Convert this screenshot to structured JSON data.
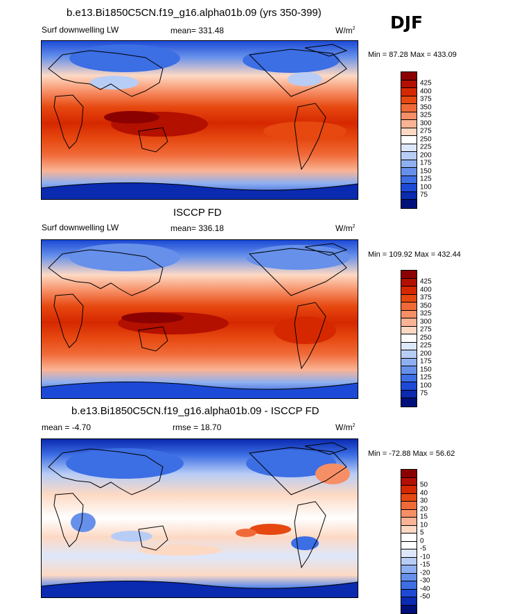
{
  "season": "DJF",
  "panels": [
    {
      "title": "b.e13.Bi1850C5CN.f19_g16.alpha01b.09 (yrs 350-399)",
      "left_label": "Surf downwelling LW",
      "center_label": "mean= 331.48",
      "units": "W/m",
      "units_sup": "2",
      "minmax": "Min =  87.28 Max = 433.09",
      "colorbar": {
        "colors": [
          "#8b0000",
          "#b31000",
          "#d62800",
          "#e64810",
          "#f06a38",
          "#f78f66",
          "#fab394",
          "#fdd9c4",
          "#ffffff",
          "#dde7fb",
          "#b8cdf6",
          "#8eb0f0",
          "#6690ea",
          "#3c6ee4",
          "#1c4ad6",
          "#0a2ab0",
          "#00107a"
        ],
        "labels": [
          "425",
          "400",
          "375",
          "350",
          "325",
          "300",
          "275",
          "250",
          "225",
          "200",
          "175",
          "150",
          "125",
          "100",
          "75"
        ]
      }
    },
    {
      "title": "ISCCP FD",
      "left_label": "Surf downwelling LW",
      "center_label": "mean= 336.18",
      "units": "W/m",
      "units_sup": "2",
      "minmax": "Min = 109.92 Max = 432.44",
      "colorbar": {
        "colors": [
          "#8b0000",
          "#b31000",
          "#d62800",
          "#e64810",
          "#f06a38",
          "#f78f66",
          "#fab394",
          "#fdd9c4",
          "#ffffff",
          "#dde7fb",
          "#b8cdf6",
          "#8eb0f0",
          "#6690ea",
          "#3c6ee4",
          "#1c4ad6",
          "#0a2ab0",
          "#00107a"
        ],
        "labels": [
          "425",
          "400",
          "375",
          "350",
          "325",
          "300",
          "275",
          "250",
          "225",
          "200",
          "175",
          "150",
          "125",
          "100",
          "75"
        ]
      }
    },
    {
      "title": "b.e13.Bi1850C5CN.f19_g16.alpha01b.09 - ISCCP FD",
      "left_label": "mean =  -4.70",
      "center_label": "rmse =  18.70",
      "units": "W/m",
      "units_sup": "2",
      "minmax": "Min = -72.88 Max =  56.62",
      "colorbar": {
        "colors": [
          "#8b0000",
          "#b31000",
          "#d62800",
          "#e64810",
          "#f06a38",
          "#f78f66",
          "#fab394",
          "#fdd9c4",
          "#ffffff",
          "#ffffff",
          "#dde7fb",
          "#b8cdf6",
          "#8eb0f0",
          "#6690ea",
          "#3c6ee4",
          "#1c4ad6",
          "#0a2ab0",
          "#00107a"
        ],
        "labels": [
          "50",
          "40",
          "30",
          "20",
          "15",
          "10",
          "5",
          "0",
          "-5",
          "-10",
          "-15",
          "-20",
          "-30",
          "-40",
          "-50"
        ]
      }
    }
  ]
}
